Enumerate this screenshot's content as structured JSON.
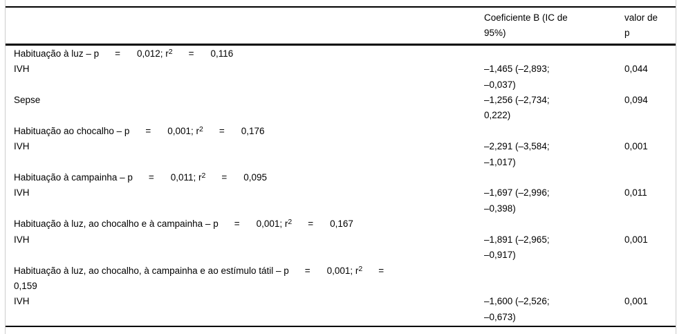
{
  "colors": {
    "rule": "#000000",
    "text": "#000000",
    "frame_edge": "#cccccc",
    "background": "#ffffff"
  },
  "table": {
    "header": {
      "predictor": "",
      "coef_line1": "Coeficiente B (IC de",
      "coef_line2": "95%)",
      "p_line1": "valor de",
      "p_line2": "p"
    },
    "rows": [
      {
        "type": "section",
        "label": "Habituação à luz – p",
        "eq1": "=",
        "value1": "0,012; r",
        "sup": "2",
        "eq2": "=",
        "value2": "0,116"
      },
      {
        "type": "data",
        "label": "IVH",
        "coef_line1": "–1,465 (–2,893;",
        "coef_line2": "–0,037)",
        "p": "0,044"
      },
      {
        "type": "data",
        "label": "Sepse",
        "coef_line1": "–1,256 (–2,734;",
        "coef_line2": "0,222)",
        "p": "0,094"
      },
      {
        "type": "section",
        "label": "Habituação ao chocalho – p",
        "eq1": "=",
        "value1": "0,001; r",
        "sup": "2",
        "eq2": "=",
        "value2": "0,176"
      },
      {
        "type": "data",
        "label": "IVH",
        "coef_line1": "–2,291 (–3,584;",
        "coef_line2": "–1,017)",
        "p": "0,001"
      },
      {
        "type": "section",
        "label": "Habituação à campainha – p",
        "eq1": "=",
        "value1": "0,011; r",
        "sup": "2",
        "eq2": "=",
        "value2": "0,095"
      },
      {
        "type": "data",
        "label": "IVH",
        "coef_line1": "–1,697 (–2,996;",
        "coef_line2": "–0,398)",
        "p": "0,011"
      },
      {
        "type": "section",
        "label": "Habituação à luz, ao chocalho e à campainha – p",
        "eq1": "=",
        "value1": "0,001; r",
        "sup": "2",
        "eq2": "=",
        "value2": "0,167"
      },
      {
        "type": "data",
        "label": "IVH",
        "coef_line1": "–1,891 (–2,965;",
        "coef_line2": "–0,917)",
        "p": "0,001"
      },
      {
        "type": "section",
        "label": "Habituação à luz, ao chocalho, à campainha e ao estímulo tátil – p",
        "eq1": "=",
        "value1": "0,001; r",
        "sup": "2",
        "eq2": "=",
        "value2": "",
        "line2": "0,159"
      },
      {
        "type": "data",
        "label": "IVH",
        "coef_line1": "–1,600 (–2,526;",
        "coef_line2": "–0,673)",
        "p": "0,001"
      }
    ]
  }
}
